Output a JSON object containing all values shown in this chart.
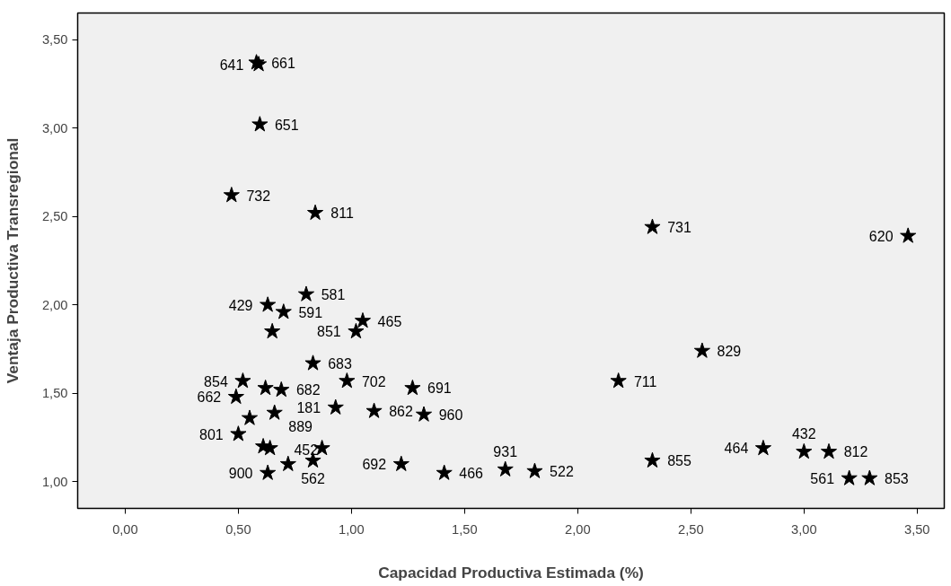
{
  "chart_data": {
    "type": "scatter",
    "xlabel": "Capacidad Productiva Estimada (%)",
    "ylabel": "Ventaja Productiva Transregional",
    "x": [
      0.58,
      0.59,
      0.595,
      0.47,
      0.84,
      2.33,
      3.46,
      2.55,
      2.18,
      2.33,
      2.82,
      3.0,
      3.11,
      3.2,
      3.29,
      1.81,
      1.68,
      0.63,
      0.7,
      0.8,
      0.65,
      1.05,
      1.02,
      0.83,
      0.98,
      0.52,
      0.62,
      0.69,
      0.49,
      1.27,
      0.93,
      1.1,
      1.32,
      0.66,
      0.55,
      0.5,
      0.61,
      0.64,
      0.87,
      0.72,
      0.83,
      0.63,
      1.22,
      1.41
    ],
    "series": [
      {
        "color": "#000000",
        "values": [
          3.37,
          3.36,
          3.02,
          2.62,
          2.52,
          2.44,
          2.39,
          1.74,
          1.57,
          1.12,
          1.19,
          1.17,
          1.17,
          1.02,
          1.02,
          1.06,
          1.07,
          2.0,
          1.96,
          2.06,
          1.85,
          1.91,
          1.85,
          1.67,
          1.57,
          1.57,
          1.53,
          1.52,
          1.48,
          1.53,
          1.42,
          1.4,
          1.38,
          1.39,
          1.36,
          1.27,
          1.2,
          1.19,
          1.19,
          1.1,
          1.12,
          1.05,
          1.1,
          1.05
        ]
      }
    ],
    "marker": "star",
    "grid": false,
    "xlim": [
      -0.21,
      3.62
    ],
    "ylim": [
      0.85,
      3.65
    ],
    "xticks": [
      {
        "value": 0,
        "label": "0,00"
      },
      {
        "value": 0.5,
        "label": "0,50"
      },
      {
        "value": 1,
        "label": "1,00"
      },
      {
        "value": 1.5,
        "label": "1,50"
      },
      {
        "value": 2,
        "label": "2,00"
      },
      {
        "value": 2.5,
        "label": "2,50"
      },
      {
        "value": 3,
        "label": "3,00"
      },
      {
        "value": 3.5,
        "label": "3,50"
      }
    ],
    "yticks": [
      {
        "value": 1,
        "label": "1,00"
      },
      {
        "value": 1.5,
        "label": "1,50"
      },
      {
        "value": 2,
        "label": "2,00"
      },
      {
        "value": 2.5,
        "label": "2,50"
      },
      {
        "value": 3,
        "label": "3,00"
      },
      {
        "value": 3.5,
        "label": "3,50"
      }
    ],
    "annotations": [
      {
        "text": "661",
        "x": 0.58,
        "y": 3.37
      },
      {
        "text": "641",
        "x": 0.59,
        "y": 3.36
      },
      {
        "text": "651",
        "x": 0.595,
        "y": 3.02
      },
      {
        "text": "732",
        "x": 0.47,
        "y": 2.62
      },
      {
        "text": "811",
        "x": 0.84,
        "y": 2.52
      },
      {
        "text": "429",
        "x": 0.63,
        "y": 2.0
      },
      {
        "text": "581",
        "x": 0.8,
        "y": 2.06
      },
      {
        "text": "465",
        "x": 1.05,
        "y": 1.91
      },
      {
        "text": "591",
        "x": 0.7,
        "y": 1.96
      },
      {
        "text": "854",
        "x": 0.52,
        "y": 1.57
      },
      {
        "text": "683",
        "x": 0.83,
        "y": 1.67
      },
      {
        "text": "702",
        "x": 0.98,
        "y": 1.57
      },
      {
        "text": "851",
        "x": 1.02,
        "y": 1.85
      },
      {
        "text": "691",
        "x": 1.27,
        "y": 1.53
      },
      {
        "text": "662",
        "x": 0.49,
        "y": 1.48
      },
      {
        "text": "682",
        "x": 0.69,
        "y": 1.52
      },
      {
        "text": "862",
        "x": 1.1,
        "y": 1.4
      },
      {
        "text": "960",
        "x": 1.32,
        "y": 1.38
      },
      {
        "text": "801",
        "x": 0.5,
        "y": 1.27
      },
      {
        "text": "181",
        "x": 0.93,
        "y": 1.42
      },
      {
        "text": "889",
        "x": 0.64,
        "y": 1.19
      },
      {
        "text": "692",
        "x": 1.22,
        "y": 1.1
      },
      {
        "text": "466",
        "x": 1.41,
        "y": 1.05
      },
      {
        "text": "900",
        "x": 0.63,
        "y": 1.05
      },
      {
        "text": "562",
        "x": 0.83,
        "y": 1.12
      },
      {
        "text": "452",
        "x": 0.72,
        "y": 1.1
      },
      {
        "text": "931",
        "x": 1.68,
        "y": 1.07
      },
      {
        "text": "522",
        "x": 1.81,
        "y": 1.06
      },
      {
        "text": "731",
        "x": 2.33,
        "y": 2.44
      },
      {
        "text": "620",
        "x": 3.46,
        "y": 2.39
      },
      {
        "text": "829",
        "x": 2.55,
        "y": 1.74
      },
      {
        "text": "711",
        "x": 2.18,
        "y": 1.57
      },
      {
        "text": "855",
        "x": 2.33,
        "y": 1.12
      },
      {
        "text": "464",
        "x": 2.82,
        "y": 1.19
      },
      {
        "text": "812",
        "x": 3.11,
        "y": 1.17
      },
      {
        "text": "432",
        "x": 3.0,
        "y": 1.17
      },
      {
        "text": "561",
        "x": 3.2,
        "y": 1.02
      },
      {
        "text": "853",
        "x": 3.29,
        "y": 1.02
      }
    ]
  }
}
